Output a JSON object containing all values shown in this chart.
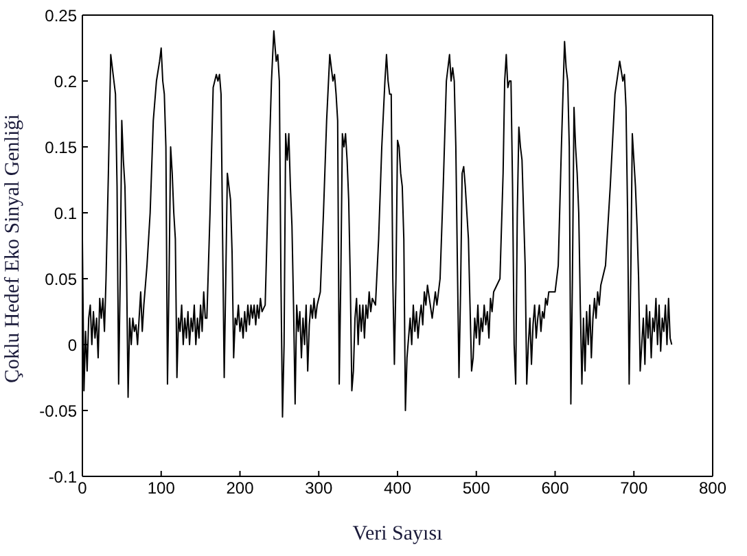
{
  "chart_data": {
    "type": "line",
    "xlabel": "Veri Sayısı",
    "ylabel": "Çoklu Hedef Eko Sinyal Genliği",
    "xlim": [
      0,
      800
    ],
    "xticks": [
      0,
      100,
      200,
      300,
      400,
      500,
      600,
      700,
      800
    ],
    "ylim": [
      -0.1,
      0.25
    ],
    "yticks": [
      -0.1,
      -0.05,
      0,
      0.05,
      0.1,
      0.15,
      0.2,
      0.25
    ],
    "marker": "none",
    "line_style": "solid",
    "series": [
      {
        "color": "#000000",
        "x": [
          0,
          2,
          4,
          6,
          8,
          10,
          12,
          14,
          16,
          18,
          20,
          22,
          24,
          26,
          28,
          30,
          33,
          36,
          38,
          40,
          42,
          44,
          46,
          48,
          50,
          52,
          54,
          56,
          58,
          60,
          62,
          64,
          66,
          68,
          70,
          72,
          74,
          76,
          78,
          82,
          86,
          90,
          94,
          98,
          100,
          102,
          104,
          106,
          108,
          110,
          112,
          114,
          116,
          118,
          120,
          122,
          124,
          126,
          128,
          130,
          132,
          134,
          136,
          138,
          140,
          142,
          144,
          146,
          148,
          150,
          152,
          154,
          156,
          158,
          162,
          166,
          170,
          172,
          174,
          176,
          178,
          180,
          182,
          184,
          186,
          188,
          190,
          192,
          194,
          196,
          198,
          200,
          202,
          204,
          206,
          208,
          210,
          212,
          214,
          216,
          218,
          220,
          222,
          224,
          226,
          228,
          232,
          236,
          240,
          243,
          246,
          248,
          250,
          252,
          254,
          256,
          258,
          260,
          262,
          264,
          266,
          268,
          270,
          272,
          274,
          276,
          278,
          280,
          282,
          284,
          286,
          288,
          290,
          292,
          294,
          296,
          298,
          302,
          306,
          310,
          314,
          318,
          320,
          322,
          324,
          326,
          328,
          330,
          332,
          334,
          336,
          338,
          340,
          342,
          344,
          346,
          348,
          350,
          352,
          354,
          356,
          358,
          360,
          362,
          364,
          366,
          368,
          372,
          376,
          380,
          384,
          386,
          388,
          390,
          392,
          394,
          396,
          398,
          400,
          402,
          404,
          406,
          408,
          410,
          412,
          414,
          416,
          418,
          420,
          422,
          424,
          426,
          428,
          430,
          432,
          434,
          436,
          438,
          444,
          448,
          450,
          454,
          458,
          462,
          466,
          468,
          470,
          472,
          474,
          476,
          478,
          480,
          482,
          484,
          486,
          488,
          490,
          492,
          494,
          496,
          498,
          500,
          502,
          504,
          506,
          508,
          510,
          512,
          514,
          516,
          518,
          520,
          522,
          530,
          534,
          536,
          538,
          540,
          542,
          544,
          546,
          548,
          550,
          552,
          554,
          556,
          558,
          560,
          562,
          564,
          566,
          568,
          570,
          572,
          574,
          576,
          578,
          580,
          582,
          584,
          586,
          588,
          590,
          592,
          600,
          604,
          608,
          612,
          614,
          616,
          618,
          620,
          622,
          624,
          626,
          628,
          630,
          632,
          634,
          636,
          638,
          640,
          642,
          644,
          646,
          648,
          650,
          652,
          654,
          656,
          658,
          660,
          664,
          670,
          676,
          682,
          686,
          688,
          690,
          692,
          694,
          696,
          698,
          700,
          702,
          704,
          706,
          708,
          710,
          712,
          714,
          716,
          718,
          720,
          722,
          724,
          726,
          728,
          730,
          732,
          734,
          736,
          738,
          740,
          742,
          744,
          746,
          748
        ],
        "values": [
          0.08,
          -0.035,
          0.01,
          -0.02,
          0.02,
          0.03,
          0,
          0.025,
          0.005,
          0.02,
          -0.01,
          0.035,
          0.02,
          0.035,
          0.01,
          0.05,
          0.13,
          0.22,
          0.21,
          0.2,
          0.19,
          0.12,
          -0.03,
          0.05,
          0.17,
          0.14,
          0.12,
          0.06,
          -0.04,
          0.02,
          0,
          0.02,
          0.01,
          0.015,
          0,
          0.02,
          0.04,
          0.01,
          0.03,
          0.06,
          0.1,
          0.17,
          0.2,
          0.215,
          0.225,
          0.2,
          0.19,
          0.15,
          -0.03,
          0.05,
          0.15,
          0.13,
          0.1,
          0.08,
          -0.025,
          0.02,
          0.01,
          0.03,
          0,
          0.02,
          0.005,
          0.025,
          0,
          0.02,
          0.01,
          0.03,
          0,
          0.02,
          0.005,
          0.03,
          0.01,
          0.04,
          0.02,
          0.02,
          0.1,
          0.195,
          0.205,
          0.2,
          0.205,
          0.19,
          0.08,
          -0.025,
          0.05,
          0.13,
          0.12,
          0.11,
          0.07,
          -0.01,
          0.02,
          0.015,
          0.03,
          0.01,
          0.02,
          0.005,
          0.025,
          0.01,
          0.03,
          0.015,
          0.03,
          0.02,
          0.03,
          0.015,
          0.03,
          0.02,
          0.035,
          0.025,
          0.03,
          0.12,
          0.2,
          0.238,
          0.215,
          0.22,
          0.2,
          0.05,
          -0.055,
          0,
          0.16,
          0.14,
          0.16,
          0.12,
          0.09,
          0.03,
          -0.045,
          0.03,
          0.01,
          0.025,
          -0.01,
          0.02,
          0,
          0.03,
          -0.02,
          0.015,
          0.03,
          0.02,
          0.035,
          0.02,
          0.03,
          0.04,
          0.1,
          0.17,
          0.22,
          0.2,
          0.205,
          0.19,
          0.17,
          -0.03,
          0.05,
          0.16,
          0.15,
          0.16,
          0.14,
          0.11,
          0.05,
          -0.035,
          -0.02,
          0.02,
          0.035,
          0,
          0.03,
          0.01,
          0.03,
          0.005,
          0.03,
          0.02,
          0.04,
          0.025,
          0.035,
          0.03,
          0.08,
          0.15,
          0.2,
          0.22,
          0.2,
          0.19,
          0.19,
          0.05,
          -0.015,
          0.05,
          0.155,
          0.15,
          0.13,
          0.12,
          0.08,
          -0.05,
          -0.01,
          0.005,
          0.02,
          0,
          0.03,
          0.01,
          0.025,
          0.005,
          0.02,
          0.03,
          0.015,
          0.04,
          0.03,
          0.045,
          0.02,
          0.04,
          0.03,
          0.05,
          0.12,
          0.2,
          0.22,
          0.2,
          0.21,
          0.2,
          0.15,
          0.06,
          -0.025,
          0.04,
          0.13,
          0.135,
          0.12,
          0.1,
          0.08,
          0.03,
          -0.02,
          -0.01,
          0.02,
          0.005,
          0.03,
          0,
          0.02,
          0.01,
          0.03,
          0.015,
          0.025,
          0.005,
          0.035,
          0.025,
          0.04,
          0.05,
          0.13,
          0.2,
          0.22,
          0.195,
          0.2,
          0.2,
          0.12,
          0,
          -0.03,
          0.1,
          0.165,
          0.15,
          0.14,
          0.1,
          0.06,
          -0.03,
          0,
          0.02,
          -0.015,
          0.015,
          0.03,
          0.005,
          0.02,
          0.03,
          0.01,
          0.025,
          0.02,
          0.035,
          0.03,
          0.04,
          0.04,
          0.06,
          0.15,
          0.23,
          0.21,
          0.2,
          0.15,
          -0.045,
          0.05,
          0.18,
          0.15,
          0.13,
          0.1,
          0.03,
          -0.03,
          0.02,
          -0.02,
          0.025,
          0,
          0.03,
          -0.01,
          0.02,
          0.035,
          0.02,
          0.04,
          0.03,
          0.045,
          0.05,
          0.06,
          0.12,
          0.19,
          0.215,
          0.2,
          0.205,
          0.18,
          0.1,
          -0.03,
          0.05,
          0.16,
          0.14,
          0.12,
          0.09,
          0.05,
          -0.02,
          0,
          0.02,
          -0.015,
          0.03,
          0.005,
          0.025,
          -0.01,
          0.02,
          0.01,
          0.035,
          0,
          0.03,
          -0.005,
          0.02,
          0.01,
          0.03,
          0,
          0.035,
          0.005,
          0
        ]
      }
    ]
  }
}
